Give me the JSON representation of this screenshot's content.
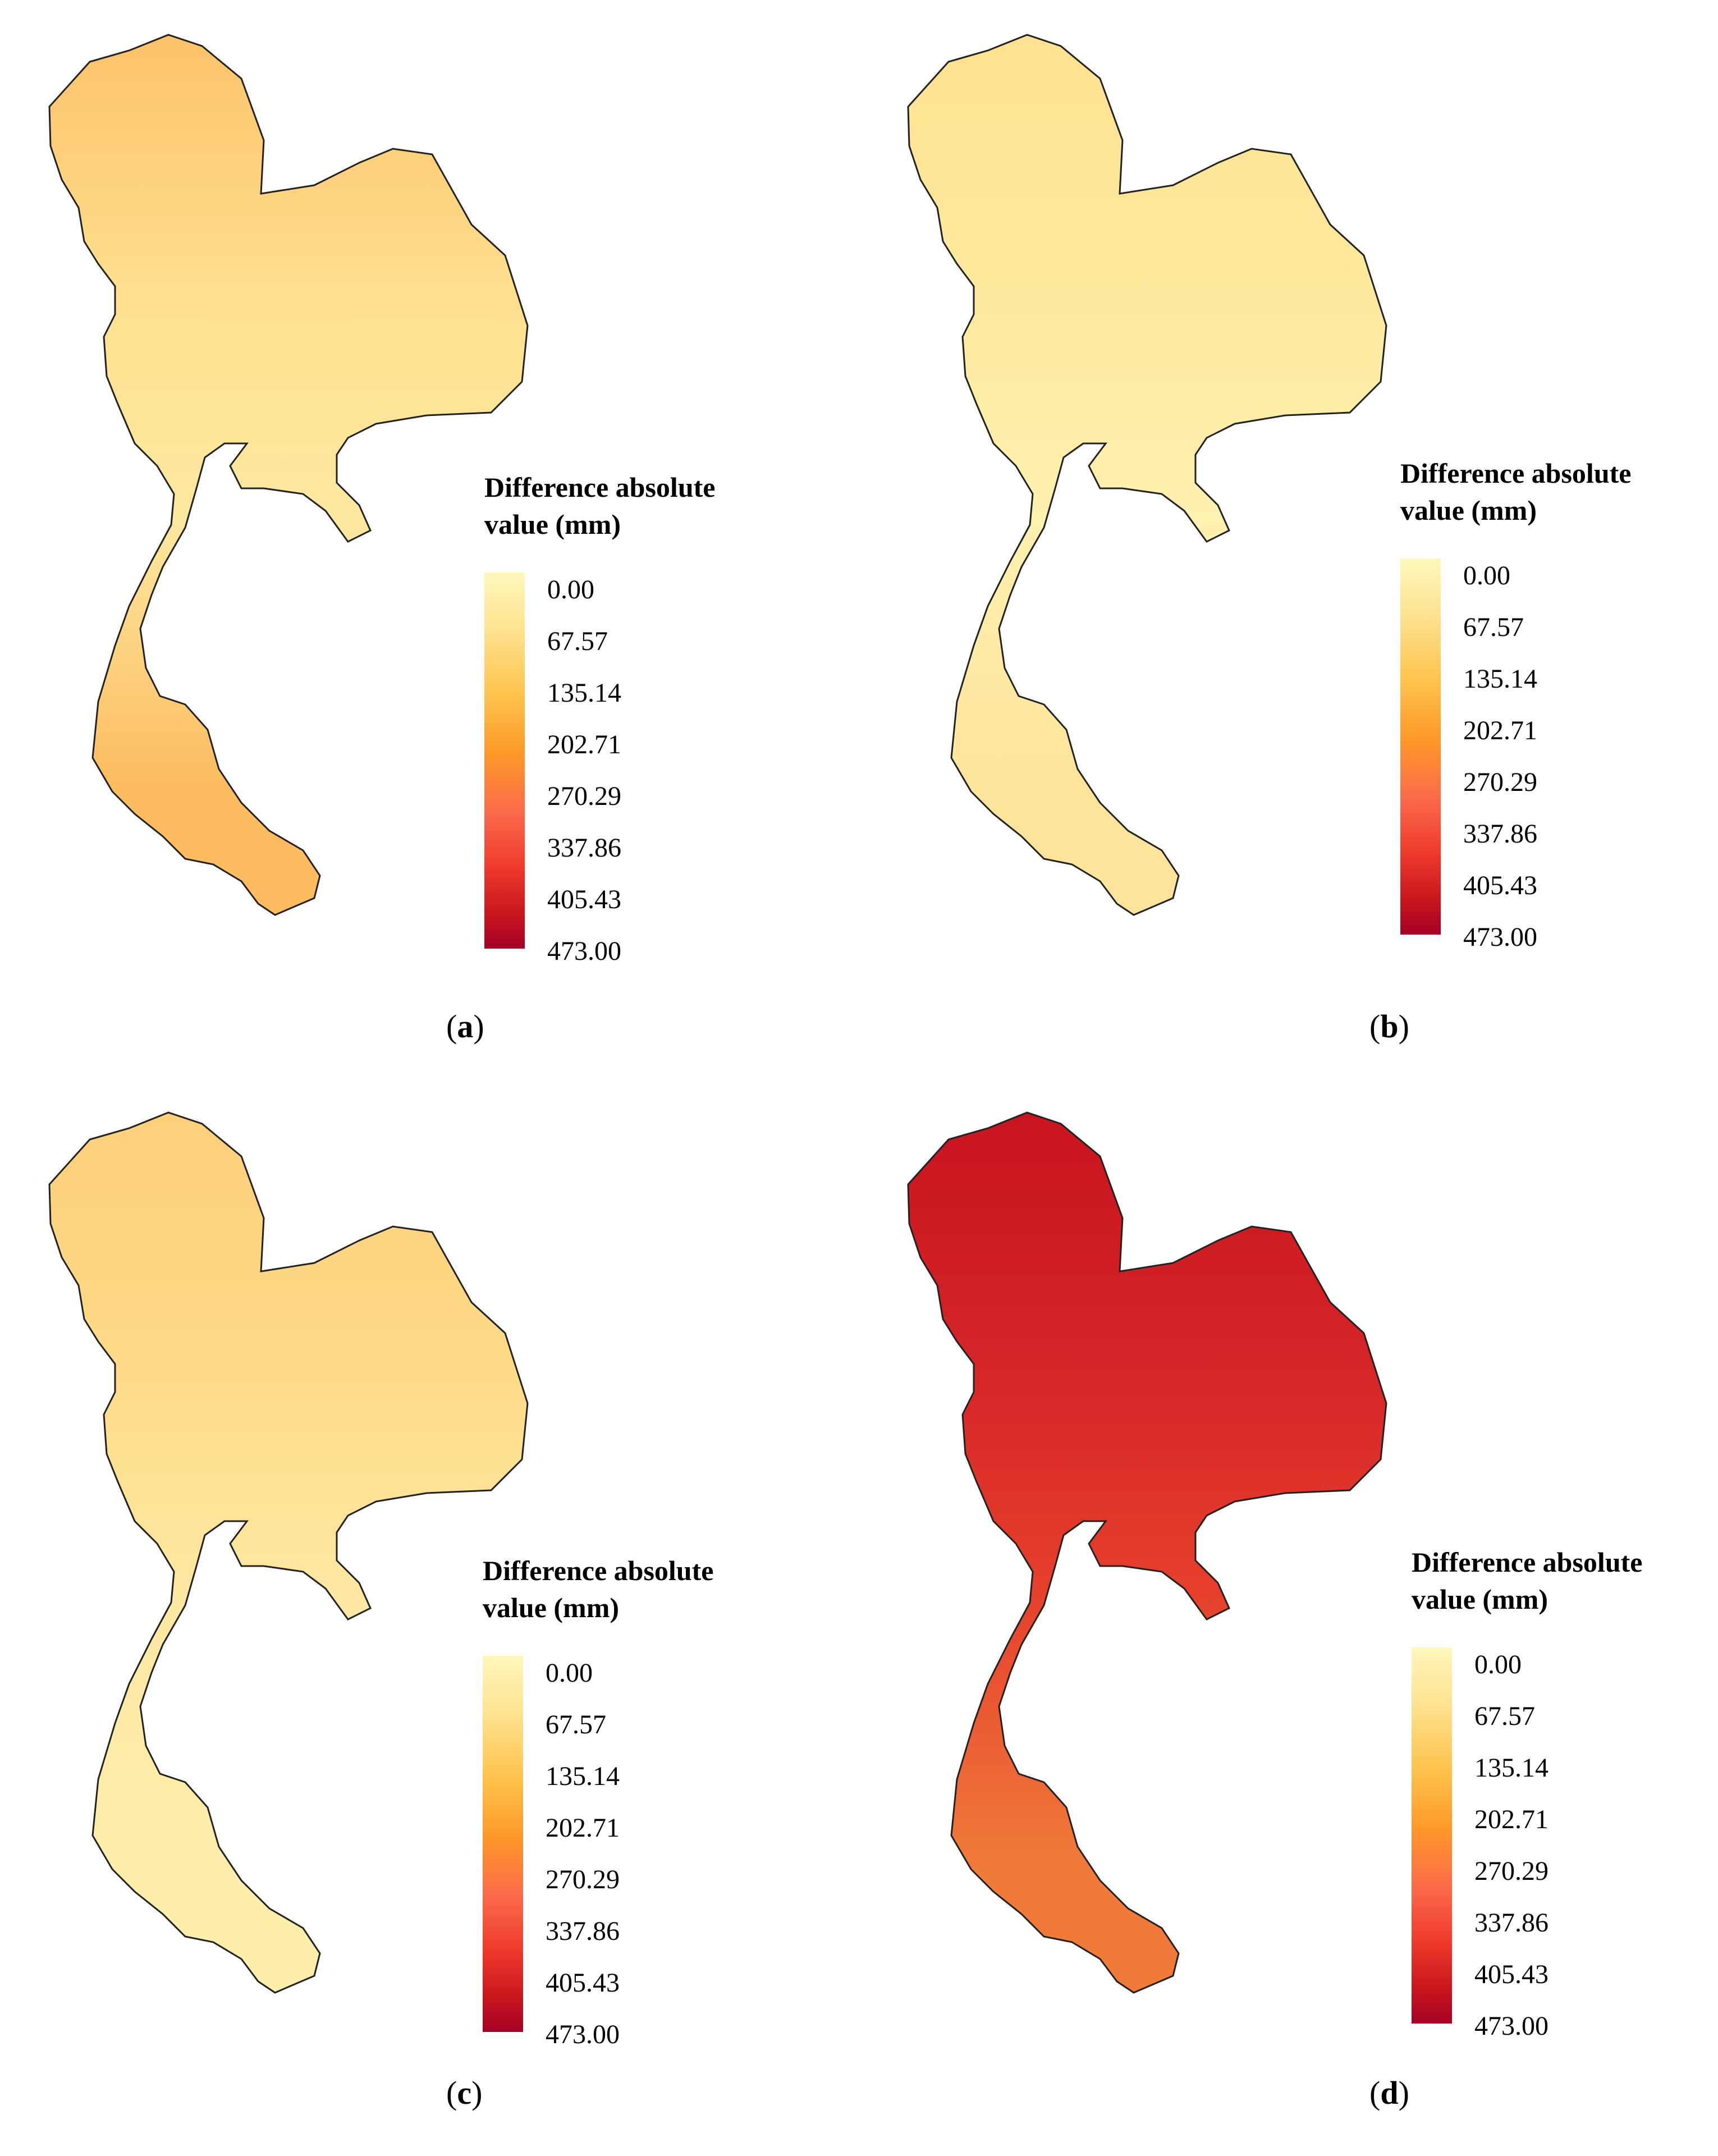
{
  "figure": {
    "panels": [
      {
        "label": "a",
        "legend": {
          "title": "Difference absolute\nvalue (mm)",
          "ticks": [
            "0.00",
            "67.57",
            "135.14",
            "202.71",
            "270.29",
            "337.86",
            "405.43",
            "473.00"
          ]
        },
        "colors": {
          "north": "#fdc26a",
          "east": "#fee08f",
          "central": "#fde8a0",
          "south": "#fdbc60"
        }
      },
      {
        "label": "b",
        "legend": {
          "title": "Difference absolute\nvalue (mm)",
          "ticks": [
            "0.00",
            "67.57",
            "135.14",
            "202.71",
            "270.29",
            "337.86",
            "405.43",
            "473.00"
          ]
        },
        "colors": {
          "north": "#fee191",
          "east": "#feea9e",
          "central": "#fff1b0",
          "south": "#fee49a"
        }
      },
      {
        "label": "c",
        "legend": {
          "title": "Difference absolute\nvalue (mm)",
          "ticks": [
            "0.00",
            "67.57",
            "135.14",
            "202.71",
            "270.29",
            "337.86",
            "405.43",
            "473.00"
          ]
        },
        "colors": {
          "north": "#fecf7a",
          "east": "#fedb88",
          "central": "#fee8a2",
          "south": "#feeeac"
        }
      },
      {
        "label": "d",
        "legend": {
          "title": "Difference absolute\nvalue (mm)",
          "ticks": [
            "0.00",
            "67.57",
            "135.14",
            "202.71",
            "270.29",
            "337.86",
            "405.43",
            "473.00"
          ]
        },
        "colors": {
          "north": "#c8141f",
          "east": "#d62628",
          "central": "#e6402c",
          "south": "#f07a3a"
        }
      }
    ]
  }
}
